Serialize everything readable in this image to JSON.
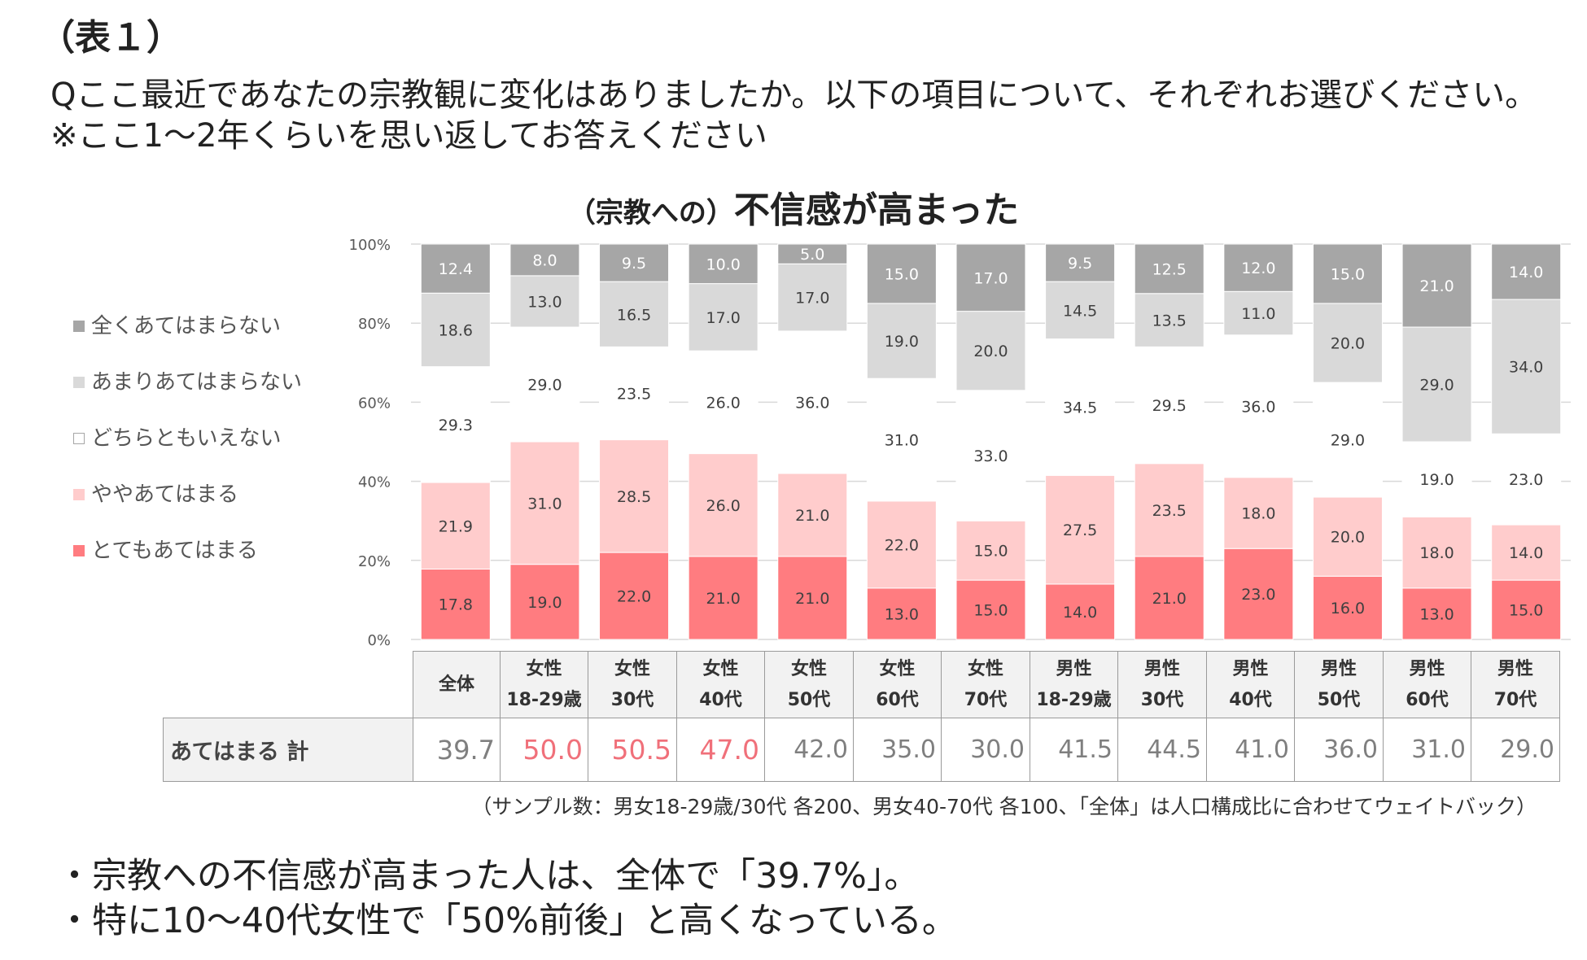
{
  "heading": "（表１）",
  "question": {
    "line1": "Qここ最近であなたの宗教観に変化はありましたか。以下の項目について、それぞれお選びください。",
    "line2": "※ここ1～2年くらいを思い返してお答えください"
  },
  "chart_title": {
    "prefix": "（宗教への）",
    "main": "不信感が高まった"
  },
  "chart_data": {
    "type": "bar",
    "stacked": true,
    "percent": true,
    "title": "（宗教への）不信感が高まった",
    "ylim": [
      0,
      100
    ],
    "y_ticks": [
      "0%",
      "20%",
      "40%",
      "60%",
      "80%",
      "100%"
    ],
    "categories": [
      {
        "l1": "全体",
        "l2": ""
      },
      {
        "l1": "女性",
        "l2": "18-29歳"
      },
      {
        "l1": "女性",
        "l2": "30代"
      },
      {
        "l1": "女性",
        "l2": "40代"
      },
      {
        "l1": "女性",
        "l2": "50代"
      },
      {
        "l1": "女性",
        "l2": "60代"
      },
      {
        "l1": "女性",
        "l2": "70代"
      },
      {
        "l1": "男性",
        "l2": "18-29歳"
      },
      {
        "l1": "男性",
        "l2": "30代"
      },
      {
        "l1": "男性",
        "l2": "40代"
      },
      {
        "l1": "男性",
        "l2": "50代"
      },
      {
        "l1": "男性",
        "l2": "60代"
      },
      {
        "l1": "男性",
        "l2": "70代"
      }
    ],
    "series": [
      {
        "name": "とてもあてはまる",
        "color": "#ff7c80",
        "values": [
          17.8,
          19.0,
          22.0,
          21.0,
          21.0,
          13.0,
          15.0,
          14.0,
          21.0,
          23.0,
          16.0,
          13.0,
          15.0
        ]
      },
      {
        "name": "ややあてはまる",
        "color": "#ffcccc",
        "values": [
          21.9,
          31.0,
          28.5,
          26.0,
          21.0,
          22.0,
          15.0,
          27.5,
          23.5,
          18.0,
          20.0,
          18.0,
          14.0
        ]
      },
      {
        "name": "どちらともいえない",
        "color": "#ffffff",
        "values": [
          29.3,
          29.0,
          23.5,
          26.0,
          36.0,
          31.0,
          33.0,
          34.5,
          29.5,
          36.0,
          29.0,
          19.0,
          23.0
        ]
      },
      {
        "name": "あまりあてはまらない",
        "color": "#d9d9d9",
        "values": [
          18.6,
          13.0,
          16.5,
          17.0,
          17.0,
          19.0,
          20.0,
          14.5,
          13.5,
          11.0,
          20.0,
          29.0,
          34.0
        ]
      },
      {
        "name": "全くあてはまらない",
        "color": "#a6a6a6",
        "values": [
          12.4,
          8.0,
          9.5,
          10.0,
          5.0,
          15.0,
          17.0,
          9.5,
          12.5,
          12.0,
          15.0,
          21.0,
          14.0
        ]
      }
    ],
    "legend_order": [
      "全くあてはまらない",
      "あまりあてはまらない",
      "どちらともいえない",
      "ややあてはまる",
      "とてもあてはまる"
    ]
  },
  "summary": {
    "row_label": "あてはまる 計",
    "values": [
      "39.7",
      "50.0",
      "50.5",
      "47.0",
      "42.0",
      "35.0",
      "30.0",
      "41.5",
      "44.5",
      "41.0",
      "36.0",
      "31.0",
      "29.0"
    ],
    "highlight": [
      false,
      true,
      true,
      true,
      false,
      false,
      false,
      false,
      false,
      false,
      false,
      false,
      false
    ],
    "highlight_color": "#f0707a",
    "value_color": "#7f7f7f"
  },
  "note": "（サンプル数：男女18-29歳/30代 各200、男女40-70代 各100、「全体」は人口構成比に合わせてウェイトバック）",
  "bullets": [
    "・宗教への不信感が高まった人は、全体で「39.7%」。",
    "・特に10～40代女性で「50%前後」と高くなっている。"
  ]
}
